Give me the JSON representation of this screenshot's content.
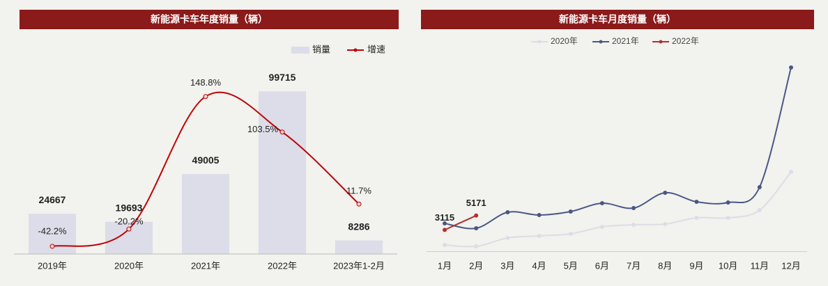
{
  "chart_data": [
    {
      "type": "bar-line",
      "title": "新能源卡车年度销量（辆）",
      "categories": [
        "2019年",
        "2020年",
        "2021年",
        "2022年",
        "2023年1-2月"
      ],
      "series": [
        {
          "name": "销量",
          "color": "#dcdde8",
          "values": [
            24667,
            19693,
            49005,
            99715,
            8286
          ]
        },
        {
          "name": "增速",
          "color": "#c00000",
          "axis": "y2",
          "values": [
            -42.2,
            -20.2,
            148.8,
            103.5,
            11.7
          ],
          "value_labels": [
            "-42.2%",
            "-20.2%",
            "148.8%",
            "103.5%",
            "11.7%"
          ]
        }
      ],
      "ylim": [
        0,
        100000
      ],
      "y2lim": [
        -52,
        156
      ],
      "legend": "top-right"
    },
    {
      "type": "line",
      "title": "新能源卡车月度销量（辆）",
      "categories": [
        "1月",
        "2月",
        "3月",
        "4月",
        "5月",
        "6月",
        "7月",
        "8月",
        "9月",
        "10月",
        "11月",
        "12月"
      ],
      "series": [
        {
          "name": "2020年",
          "color": "#dcdde6",
          "values": [
            950,
            750,
            1950,
            2250,
            2550,
            3550,
            3850,
            3950,
            4850,
            4850,
            5950,
            11450
          ]
        },
        {
          "name": "2021年",
          "color": "#4a5785",
          "values": [
            4050,
            3350,
            5650,
            5250,
            5750,
            6950,
            6250,
            8450,
            7150,
            7050,
            9250,
            26450
          ]
        },
        {
          "name": "2022年",
          "color": "#b03030",
          "values": [
            3115,
            5171,
            null,
            null,
            null,
            null,
            null,
            null,
            null,
            null,
            null,
            null
          ],
          "data_labels": true
        }
      ],
      "ylim": [
        0,
        27000
      ],
      "legend": "top"
    }
  ]
}
